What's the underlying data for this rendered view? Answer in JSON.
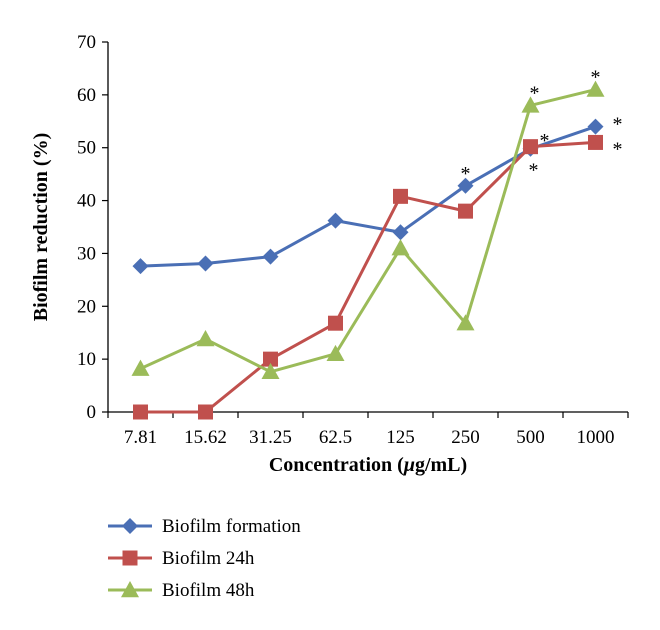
{
  "chart_data": {
    "type": "line",
    "title": "",
    "xlabel_main": "Concentration (",
    "xlabel_mu": "μ",
    "xlabel_unit": "g/mL)",
    "ylabel": "Biofilm reduction (%)",
    "categories": [
      "7.81",
      "15.62",
      "31.25",
      "62.5",
      "125",
      "250",
      "500",
      "1000"
    ],
    "ylim": [
      0,
      70
    ],
    "yticks": [
      "0",
      "10",
      "20",
      "30",
      "40",
      "50",
      "60",
      "70"
    ],
    "grid": false,
    "legend_position": "bottom-left",
    "series": [
      {
        "name": "Biofilm formation",
        "marker": "diamond",
        "color": "#4a6fb5",
        "values": [
          27.6,
          28.1,
          29.4,
          36.2,
          34.0,
          42.8,
          49.8,
          54.0
        ]
      },
      {
        "name": "Biofilm 24h",
        "marker": "square",
        "color": "#c0504d",
        "values": [
          0,
          0,
          10.0,
          16.8,
          40.8,
          38.0,
          50.2,
          51.0
        ]
      },
      {
        "name": "Biofilm 48h",
        "marker": "triangle",
        "color": "#9bbb59",
        "values": [
          8.2,
          13.8,
          7.6,
          11.0,
          31.0,
          16.8,
          58.0,
          61.0
        ]
      }
    ],
    "annotations": [
      {
        "text": "*",
        "series": 0,
        "index": 5
      },
      {
        "text": "*",
        "series": 0,
        "index": 6
      },
      {
        "text": "*",
        "series": 0,
        "index": 7
      },
      {
        "text": "*",
        "series": 1,
        "index": 6
      },
      {
        "text": "*",
        "series": 1,
        "index": 7
      },
      {
        "text": "*",
        "series": 2,
        "index": 6
      },
      {
        "text": "*",
        "series": 2,
        "index": 7
      }
    ]
  }
}
